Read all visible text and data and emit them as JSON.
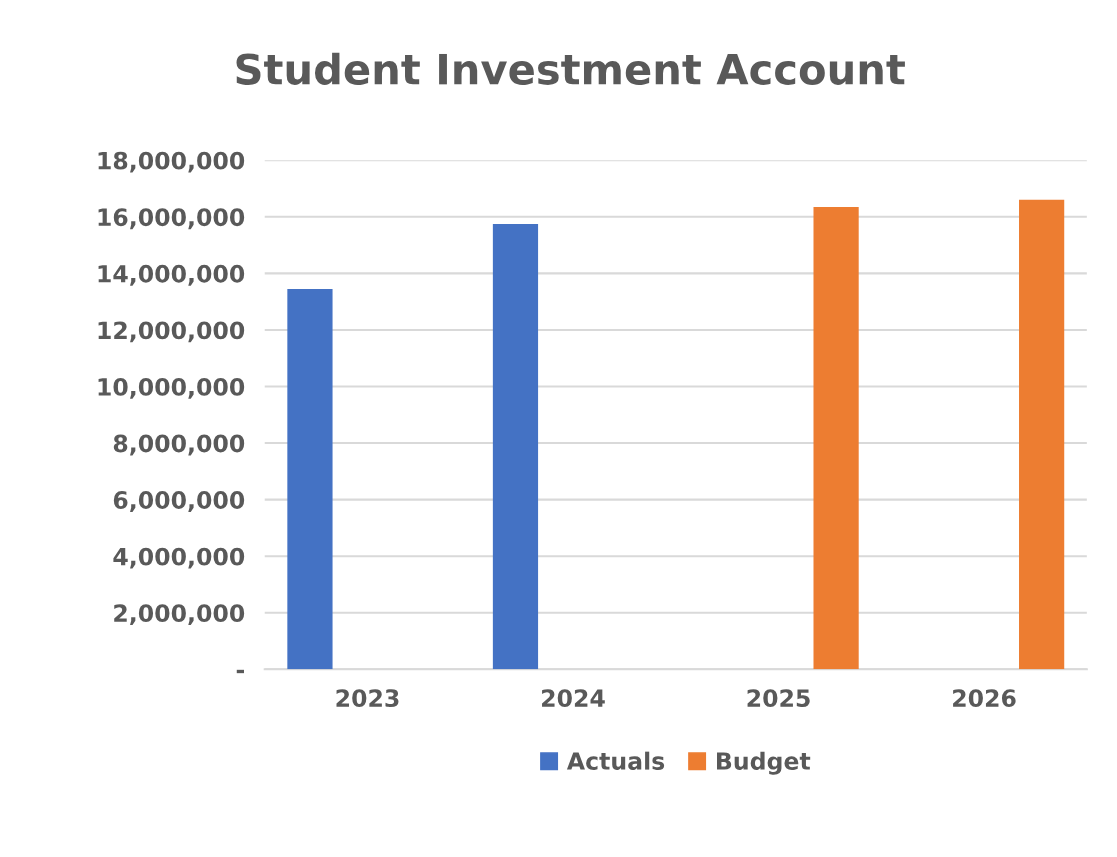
{
  "chart_data": {
    "type": "bar",
    "title": "Student Investment Account",
    "categories": [
      "2023",
      "2024",
      "2025",
      "2026"
    ],
    "series": [
      {
        "name": "Actuals",
        "color": "#4472c4",
        "values": [
          13450000,
          15750000,
          null,
          null
        ]
      },
      {
        "name": "Budget",
        "color": "#ed7d31",
        "values": [
          null,
          null,
          16350000,
          16600000
        ]
      }
    ],
    "ylim": [
      0,
      18000000
    ],
    "yticks": [
      {
        "value": 0,
        "label": "-"
      },
      {
        "value": 2000000,
        "label": "2,000,000"
      },
      {
        "value": 4000000,
        "label": "4,000,000"
      },
      {
        "value": 6000000,
        "label": "6,000,000"
      },
      {
        "value": 8000000,
        "label": "8,000,000"
      },
      {
        "value": 10000000,
        "label": "10,000,000"
      },
      {
        "value": 12000000,
        "label": "12,000,000"
      },
      {
        "value": 14000000,
        "label": "14,000,000"
      },
      {
        "value": 16000000,
        "label": "16,000,000"
      },
      {
        "value": 18000000,
        "label": "18,000,000"
      }
    ],
    "grid": "y",
    "legend": "bottom"
  }
}
